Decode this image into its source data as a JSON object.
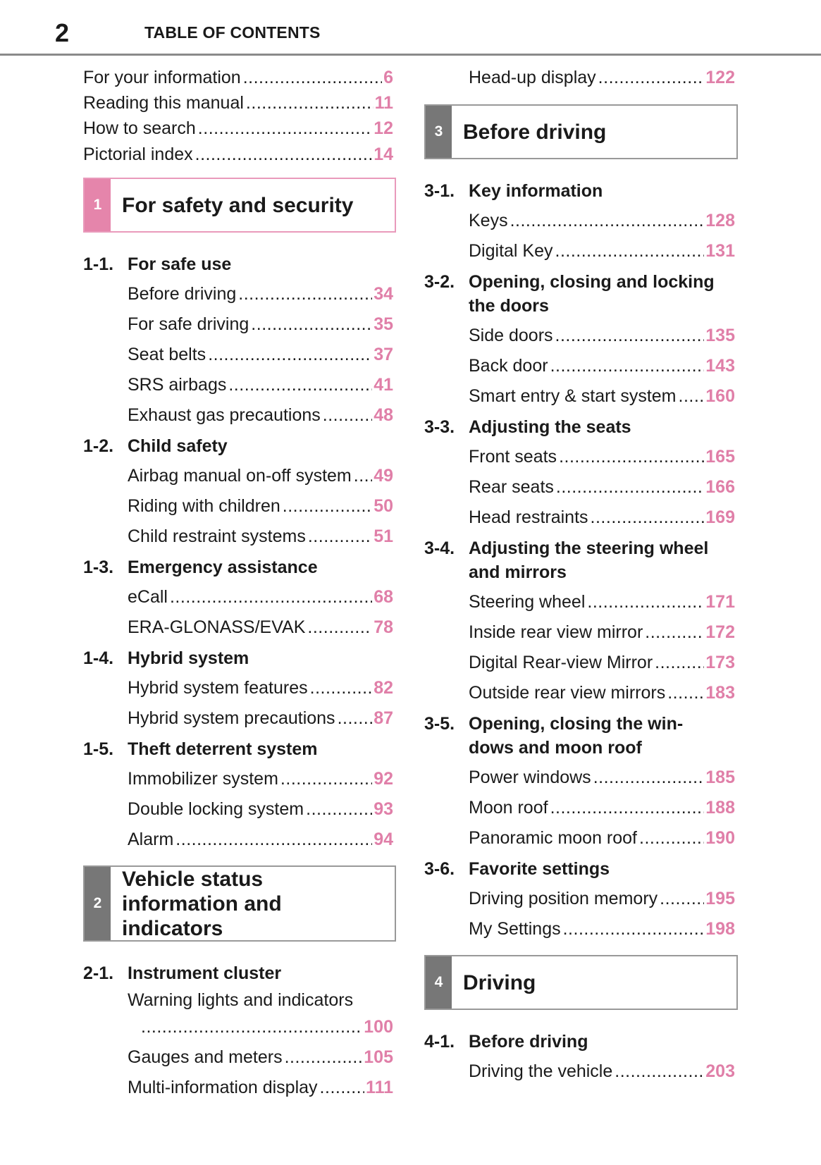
{
  "header": {
    "page_number": "2",
    "title": "TABLE OF CONTENTS"
  },
  "colors": {
    "page_number": "#e07fa8",
    "section_pink": "#e585ab",
    "section_gray": "#777777",
    "rule": "#8a8a8a"
  },
  "left": [
    {
      "type": "top",
      "label": "For your information",
      "page": "6"
    },
    {
      "type": "top",
      "label": "Reading this manual",
      "page": "11"
    },
    {
      "type": "top",
      "label": "How to search",
      "page": "12"
    },
    {
      "type": "top",
      "label": "Pictorial index",
      "page": "14"
    },
    {
      "type": "section",
      "number": "1",
      "title": "For safety and security",
      "style": "pink"
    },
    {
      "type": "heading",
      "number": "1-1.",
      "title": "For safe use"
    },
    {
      "type": "item",
      "label": "Before driving",
      "page": "34"
    },
    {
      "type": "item",
      "label": "For safe driving",
      "page": "35"
    },
    {
      "type": "item",
      "label": "Seat belts",
      "page": "37"
    },
    {
      "type": "item",
      "label": "SRS airbags",
      "page": "41"
    },
    {
      "type": "item",
      "label": "Exhaust gas precautions",
      "page": "48"
    },
    {
      "type": "heading",
      "number": "1-2.",
      "title": "Child safety"
    },
    {
      "type": "item",
      "label": "Airbag manual on-off system",
      "page": "49"
    },
    {
      "type": "item",
      "label": "Riding with children",
      "page": "50"
    },
    {
      "type": "item",
      "label": "Child restraint systems",
      "page": "51"
    },
    {
      "type": "heading",
      "number": "1-3.",
      "title": "Emergency assistance"
    },
    {
      "type": "item",
      "label": "eCall",
      "page": "68"
    },
    {
      "type": "item",
      "label": "ERA-GLONASS/EVAK",
      "page": "78"
    },
    {
      "type": "heading",
      "number": "1-4.",
      "title": "Hybrid system"
    },
    {
      "type": "item",
      "label": "Hybrid system features",
      "page": "82"
    },
    {
      "type": "item",
      "label": "Hybrid system precautions",
      "page": "87"
    },
    {
      "type": "heading",
      "number": "1-5.",
      "title": "Theft deterrent system"
    },
    {
      "type": "item",
      "label": "Immobilizer system",
      "page": "92"
    },
    {
      "type": "item",
      "label": "Double locking system",
      "page": "93"
    },
    {
      "type": "item",
      "label": "Alarm",
      "page": "94"
    },
    {
      "type": "section",
      "number": "2",
      "title": "Vehicle status\ninformation and\nindicators",
      "style": "gray-tall"
    },
    {
      "type": "heading",
      "number": "2-1.",
      "title": "Instrument cluster"
    },
    {
      "type": "item-wrap",
      "label": "Warning lights and indicators",
      "page": "100"
    },
    {
      "type": "item",
      "label": "Gauges and meters",
      "page": "105"
    },
    {
      "type": "item",
      "label": "Multi-information display",
      "page": "111"
    }
  ],
  "right": [
    {
      "type": "top-sub",
      "label": "Head-up display",
      "page": "122"
    },
    {
      "type": "section",
      "number": "3",
      "title": "Before driving",
      "style": "gray"
    },
    {
      "type": "heading",
      "number": "3-1.",
      "title": "Key information"
    },
    {
      "type": "item",
      "label": "Keys",
      "page": "128"
    },
    {
      "type": "item",
      "label": "Digital Key",
      "page": "131"
    },
    {
      "type": "heading",
      "number": "3-2.",
      "title": "Opening, closing and locking\nthe doors"
    },
    {
      "type": "item",
      "label": "Side doors",
      "page": "135"
    },
    {
      "type": "item",
      "label": "Back door",
      "page": "143"
    },
    {
      "type": "item",
      "label": "Smart entry & start system",
      "page": "160"
    },
    {
      "type": "heading",
      "number": "3-3.",
      "title": "Adjusting the seats"
    },
    {
      "type": "item",
      "label": "Front seats",
      "page": "165"
    },
    {
      "type": "item",
      "label": "Rear seats",
      "page": "166"
    },
    {
      "type": "item",
      "label": "Head restraints",
      "page": "169"
    },
    {
      "type": "heading",
      "number": "3-4.",
      "title": "Adjusting the steering wheel\nand mirrors"
    },
    {
      "type": "item",
      "label": "Steering wheel",
      "page": "171"
    },
    {
      "type": "item",
      "label": "Inside rear view mirror",
      "page": "172"
    },
    {
      "type": "item",
      "label": "Digital Rear-view Mirror",
      "page": "173"
    },
    {
      "type": "item",
      "label": "Outside rear view mirrors",
      "page": "183"
    },
    {
      "type": "heading",
      "number": "3-5.",
      "title": "Opening, closing the win-\ndows and moon roof"
    },
    {
      "type": "item",
      "label": "Power windows",
      "page": "185"
    },
    {
      "type": "item",
      "label": "Moon roof",
      "page": "188"
    },
    {
      "type": "item",
      "label": "Panoramic moon roof",
      "page": "190"
    },
    {
      "type": "heading",
      "number": "3-6.",
      "title": "Favorite settings"
    },
    {
      "type": "item",
      "label": "Driving position memory",
      "page": "195"
    },
    {
      "type": "item",
      "label": "My Settings",
      "page": "198"
    },
    {
      "type": "section",
      "number": "4",
      "title": "Driving",
      "style": "gray"
    },
    {
      "type": "heading",
      "number": "4-1.",
      "title": "Before driving"
    },
    {
      "type": "item",
      "label": "Driving the vehicle",
      "page": "203"
    }
  ]
}
